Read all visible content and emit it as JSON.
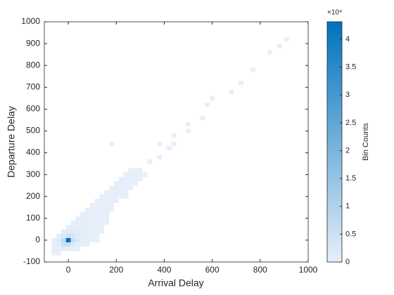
{
  "chart_data": {
    "type": "histogram2",
    "xlabel": "Arrival Delay",
    "ylabel": "Departure Delay",
    "xlim": [
      -100,
      1000
    ],
    "ylim": [
      -100,
      1000
    ],
    "xticks": [
      0,
      200,
      400,
      600,
      800,
      1000
    ],
    "yticks": [
      -100,
      0,
      100,
      200,
      300,
      400,
      500,
      600,
      700,
      800,
      900,
      1000
    ],
    "bin_width": 20,
    "cells": [
      [
        -60,
        -60,
        30
      ],
      [
        -40,
        -60,
        60
      ],
      [
        -60,
        -40,
        80
      ],
      [
        -40,
        -40,
        300
      ],
      [
        -20,
        -40,
        700
      ],
      [
        0,
        -40,
        500
      ],
      [
        20,
        -40,
        150
      ],
      [
        40,
        -40,
        40
      ],
      [
        -60,
        -20,
        120
      ],
      [
        -40,
        -20,
        800
      ],
      [
        -20,
        -20,
        5000
      ],
      [
        0,
        -20,
        6000
      ],
      [
        20,
        -20,
        1800
      ],
      [
        40,
        -20,
        500
      ],
      [
        60,
        -20,
        120
      ],
      [
        80,
        -20,
        40
      ],
      [
        -60,
        0,
        100
      ],
      [
        -40,
        0,
        900
      ],
      [
        -20,
        0,
        7000
      ],
      [
        0,
        0,
        43000
      ],
      [
        20,
        0,
        6000
      ],
      [
        40,
        0,
        1500
      ],
      [
        60,
        0,
        400
      ],
      [
        80,
        0,
        150
      ],
      [
        100,
        0,
        60
      ],
      [
        120,
        0,
        30
      ],
      [
        -40,
        20,
        300
      ],
      [
        -20,
        20,
        2500
      ],
      [
        0,
        20,
        5000
      ],
      [
        20,
        20,
        3000
      ],
      [
        40,
        20,
        1200
      ],
      [
        60,
        20,
        500
      ],
      [
        80,
        20,
        200
      ],
      [
        100,
        20,
        80
      ],
      [
        120,
        20,
        40
      ],
      [
        -20,
        40,
        400
      ],
      [
        0,
        40,
        1200
      ],
      [
        20,
        40,
        1500
      ],
      [
        40,
        40,
        900
      ],
      [
        60,
        40,
        500
      ],
      [
        80,
        40,
        250
      ],
      [
        100,
        40,
        120
      ],
      [
        120,
        40,
        60
      ],
      [
        140,
        40,
        30
      ],
      [
        0,
        60,
        200
      ],
      [
        20,
        60,
        500
      ],
      [
        40,
        60,
        600
      ],
      [
        60,
        60,
        500
      ],
      [
        80,
        60,
        300
      ],
      [
        100,
        60,
        150
      ],
      [
        120,
        60,
        70
      ],
      [
        140,
        60,
        40
      ],
      [
        20,
        80,
        150
      ],
      [
        40,
        80,
        300
      ],
      [
        60,
        80,
        350
      ],
      [
        80,
        80,
        300
      ],
      [
        100,
        80,
        180
      ],
      [
        120,
        80,
        90
      ],
      [
        140,
        80,
        50
      ],
      [
        160,
        80,
        20
      ],
      [
        40,
        100,
        100
      ],
      [
        60,
        100,
        200
      ],
      [
        80,
        100,
        250
      ],
      [
        100,
        100,
        200
      ],
      [
        120,
        100,
        120
      ],
      [
        140,
        100,
        60
      ],
      [
        160,
        100,
        30
      ],
      [
        60,
        120,
        80
      ],
      [
        80,
        120,
        150
      ],
      [
        100,
        120,
        180
      ],
      [
        120,
        120,
        140
      ],
      [
        140,
        120,
        80
      ],
      [
        160,
        120,
        40
      ],
      [
        80,
        140,
        60
      ],
      [
        100,
        140,
        110
      ],
      [
        120,
        140,
        130
      ],
      [
        140,
        140,
        100
      ],
      [
        160,
        140,
        50
      ],
      [
        180,
        140,
        25
      ],
      [
        100,
        160,
        40
      ],
      [
        120,
        160,
        80
      ],
      [
        140,
        160,
        100
      ],
      [
        160,
        160,
        70
      ],
      [
        180,
        160,
        35
      ],
      [
        120,
        180,
        30
      ],
      [
        140,
        180,
        60
      ],
      [
        160,
        180,
        70
      ],
      [
        180,
        180,
        50
      ],
      [
        200,
        180,
        25
      ],
      [
        140,
        200,
        20
      ],
      [
        160,
        200,
        40
      ],
      [
        180,
        200,
        50
      ],
      [
        200,
        200,
        40
      ],
      [
        220,
        200,
        20
      ],
      [
        240,
        200,
        10
      ],
      [
        160,
        220,
        15
      ],
      [
        180,
        220,
        30
      ],
      [
        200,
        220,
        35
      ],
      [
        220,
        220,
        30
      ],
      [
        240,
        220,
        15
      ],
      [
        180,
        240,
        10
      ],
      [
        200,
        240,
        20
      ],
      [
        220,
        240,
        25
      ],
      [
        240,
        240,
        20
      ],
      [
        260,
        240,
        10
      ],
      [
        200,
        260,
        8
      ],
      [
        220,
        260,
        12
      ],
      [
        240,
        260,
        15
      ],
      [
        260,
        260,
        12
      ],
      [
        280,
        260,
        6
      ],
      [
        220,
        280,
        5
      ],
      [
        240,
        280,
        8
      ],
      [
        260,
        280,
        10
      ],
      [
        280,
        280,
        8
      ],
      [
        300,
        280,
        5
      ],
      [
        240,
        300,
        4
      ],
      [
        260,
        300,
        6
      ],
      [
        280,
        300,
        6
      ],
      [
        300,
        300,
        5
      ],
      [
        320,
        300,
        3
      ],
      [
        260,
        320,
        3
      ],
      [
        280,
        320,
        4
      ],
      [
        300,
        320,
        3
      ],
      [
        180,
        440,
        1
      ],
      [
        340,
        360,
        2
      ],
      [
        380,
        380,
        2
      ],
      [
        420,
        420,
        1
      ],
      [
        440,
        440,
        1
      ],
      [
        440,
        480,
        1
      ],
      [
        380,
        440,
        1
      ],
      [
        500,
        500,
        1
      ],
      [
        500,
        530,
        1
      ],
      [
        560,
        560,
        1
      ],
      [
        580,
        620,
        1
      ],
      [
        600,
        650,
        1
      ],
      [
        680,
        680,
        1
      ],
      [
        720,
        720,
        1
      ],
      [
        770,
        780,
        1
      ],
      [
        840,
        860,
        1
      ],
      [
        880,
        890,
        1
      ],
      [
        910,
        920,
        1
      ]
    ],
    "colormap": [
      "#e6eff9",
      "#0072bd"
    ],
    "clim": [
      0,
      43150
    ],
    "colorbar_label": "Bin Counts",
    "colorbar_exponent": "×10⁴",
    "colorbar_ticks": [
      0,
      {
        "value": 5000,
        "label": "0.5"
      },
      {
        "value": 10000,
        "label": "1"
      },
      {
        "value": 15000,
        "label": "1.5"
      },
      {
        "value": 20000,
        "label": "2"
      },
      {
        "value": 25000,
        "label": "2.5"
      },
      {
        "value": 30000,
        "label": "3"
      },
      {
        "value": 35000,
        "label": "3.5"
      },
      {
        "value": 40000,
        "label": "4"
      }
    ]
  }
}
